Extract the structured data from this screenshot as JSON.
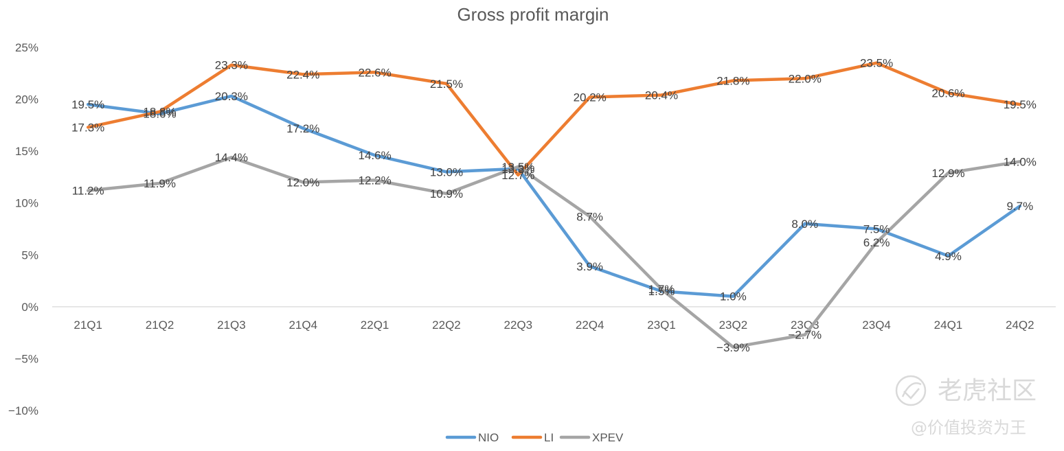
{
  "chart_data": {
    "type": "line",
    "title": "Gross profit margin",
    "categories": [
      "21Q1",
      "21Q2",
      "21Q3",
      "21Q4",
      "22Q1",
      "22Q2",
      "22Q3",
      "22Q4",
      "23Q1",
      "23Q2",
      "23Q3",
      "23Q4",
      "24Q1",
      "24Q2"
    ],
    "ylim": [
      -10,
      25
    ],
    "yticks": [
      25,
      20,
      15,
      10,
      5,
      0,
      -5,
      -10
    ],
    "ytick_labels": [
      "25%",
      "20%",
      "15%",
      "10%",
      "5%",
      "0%",
      "−5%",
      "−10%"
    ],
    "grid": false,
    "legend_position": "bottom",
    "series": [
      {
        "name": "NIO",
        "color": "#5b9bd5",
        "values": [
          19.5,
          18.6,
          20.3,
          17.2,
          14.6,
          13.0,
          13.3,
          3.9,
          1.5,
          1.0,
          8.0,
          7.5,
          4.9,
          9.7
        ],
        "labels": [
          "19.5%",
          "18.6%",
          "20.3%",
          "17.2%",
          "14.6%",
          "13.0%",
          "13.3%",
          "3.9%",
          "1.5%",
          "1.0%",
          "8.0%",
          "7.5%",
          "4.9%",
          "9.7%"
        ]
      },
      {
        "name": "LI",
        "color": "#ed7d31",
        "values": [
          17.3,
          18.8,
          23.3,
          22.4,
          22.6,
          21.5,
          12.7,
          20.2,
          20.4,
          21.8,
          22.0,
          23.5,
          20.6,
          19.5
        ],
        "labels": [
          "17.3%",
          "18.8%",
          "23.3%",
          "22.4%",
          "22.6%",
          "21.5%",
          "12.7%",
          "20.2%",
          "20.4%",
          "21.8%",
          "22.0%",
          "23.5%",
          "20.6%",
          "19.5%"
        ]
      },
      {
        "name": "XPEV",
        "color": "#a5a5a5",
        "values": [
          11.2,
          11.9,
          14.4,
          12.0,
          12.2,
          10.9,
          13.5,
          8.7,
          1.7,
          -3.9,
          -2.7,
          6.2,
          12.9,
          14.0
        ],
        "labels": [
          "11.2%",
          "11.9%",
          "14.4%",
          "12.0%",
          "12.2%",
          "10.9%",
          "13.5%",
          "8.7%",
          "1.7%",
          "−3.9%",
          "−2.7%",
          "6.2%",
          "12.9%",
          "14.0%"
        ]
      }
    ]
  },
  "watermark": {
    "brand": "老虎社区",
    "author": "@价值投资为王"
  }
}
